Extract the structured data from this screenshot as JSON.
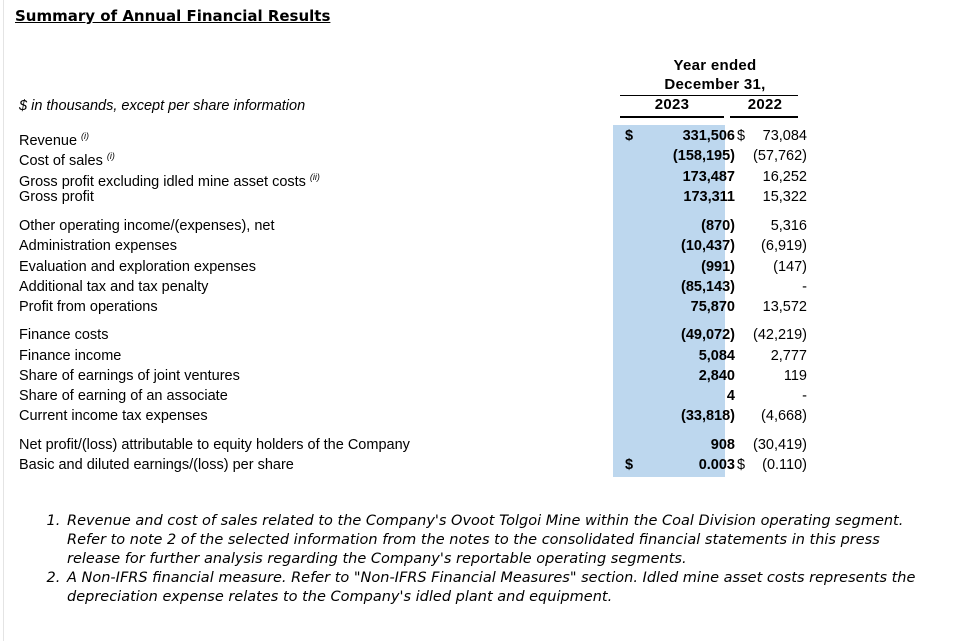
{
  "title": "Summary of Annual Financial Results",
  "header": {
    "line1": "Year ended",
    "line2": "December 31,",
    "year1": "2023",
    "year2": "2022"
  },
  "units": "$ in thousands, except per share information",
  "rows": [
    {
      "label": "Revenue",
      "note": "(i)",
      "d1": "$",
      "v1": "331,506",
      "d2": "$",
      "v2": "73,084"
    },
    {
      "label": "Cost of sales",
      "note": "(i)",
      "v1": "(158,195)",
      "v2": "(57,762)"
    },
    {
      "label": "Gross profit excluding idled mine asset costs",
      "note": "(ii)",
      "v1": "173,487",
      "v2": "16,252"
    },
    {
      "label": "Gross profit",
      "v1": "173,311",
      "v2": "15,322"
    },
    {
      "label": "Other operating income/(expenses), net",
      "v1": "(870)",
      "v2": "5,316"
    },
    {
      "label": "Administration expenses",
      "v1": "(10,437)",
      "v2": "(6,919)"
    },
    {
      "label": "Evaluation and exploration expenses",
      "v1": "(991)",
      "v2": "(147)"
    },
    {
      "label": "Additional tax and tax penalty",
      "v1": "(85,143)",
      "v2": "-"
    },
    {
      "label": "Profit from operations",
      "v1": "75,870",
      "v2": "13,572"
    },
    {
      "label": "Finance costs",
      "v1": "(49,072)",
      "v2": "(42,219)"
    },
    {
      "label": "Finance income",
      "v1": "5,084",
      "v2": "2,777"
    },
    {
      "label": "Share of earnings of joint ventures",
      "v1": "2,840",
      "v2": "119"
    },
    {
      "label": "Share of earning of an associate",
      "v1": "4",
      "v2": "-"
    },
    {
      "label": "Current income tax expenses",
      "v1": "(33,818)",
      "v2": "(4,668)"
    },
    {
      "label": "Net profit/(loss) attributable to equity holders of the Company",
      "v1": "908",
      "v2": "(30,419)"
    },
    {
      "label": "Basic and diluted earnings/(loss) per share",
      "d1": "$",
      "v1": "0.003",
      "d2": "$",
      "v2": "(0.110)"
    }
  ],
  "notes": [
    "Revenue and cost of sales related to the Company's Ovoot Tolgoi Mine within the Coal Division operating segment. Refer to note 2 of the selected information from the notes to the consolidated financial statements in this press release for further analysis regarding the Company's reportable operating segments.",
    "A Non-IFRS financial measure. Refer to \"Non-IFRS Financial Measures\" section. Idled mine asset costs represents the depreciation expense relates to the Company's idled plant and equipment."
  ],
  "colors": {
    "shade": "#bdd7ee"
  }
}
